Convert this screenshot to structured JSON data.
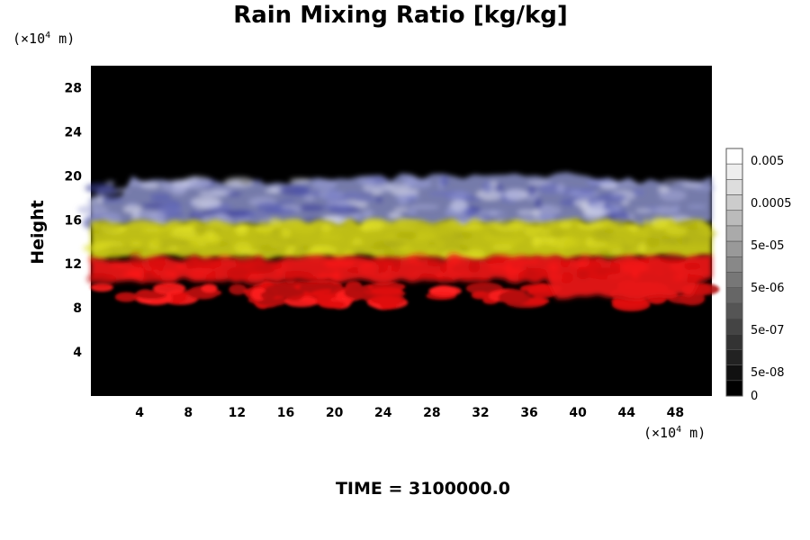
{
  "chart_data": {
    "type": "heatmap",
    "title": "Rain Mixing Ratio [kg/kg]",
    "ylabel": "Height",
    "x_unit": "(×10",
    "x_unit_exp": "4",
    "x_unit_tail": " m)",
    "y_unit": "(×10",
    "y_unit_exp": "4",
    "y_unit_tail": " m)",
    "xlim": [
      0,
      51
    ],
    "ylim": [
      0,
      30
    ],
    "x_ticks": [
      "4",
      "8",
      "12",
      "16",
      "20",
      "24",
      "28",
      "32",
      "36",
      "40",
      "44",
      "48"
    ],
    "y_ticks": [
      "4",
      "8",
      "12",
      "16",
      "20",
      "24",
      "28"
    ],
    "x_tick_values": [
      4,
      8,
      12,
      16,
      20,
      24,
      28,
      32,
      36,
      40,
      44,
      48
    ],
    "y_tick_values": [
      4,
      8,
      12,
      16,
      20,
      24,
      28
    ],
    "bands": [
      {
        "name": "lower red patches",
        "color": "#e01010",
        "y_range": [
          8.3,
          10.0
        ]
      },
      {
        "name": "red layer",
        "color": "#e81414",
        "y_range": [
          10.5,
          12.5
        ]
      },
      {
        "name": "yellow layer",
        "color": "#c8c814",
        "y_range": [
          12.5,
          15.8
        ]
      },
      {
        "name": "blue-white layer",
        "color": "#8a90c8",
        "y_range": [
          15.5,
          19.6
        ]
      }
    ],
    "colorbar": {
      "labels": [
        "0.005",
        "0.0005",
        "5e-05",
        "5e-06",
        "5e-07",
        "5e-08",
        "0"
      ],
      "levels": 16
    },
    "background": "#000000"
  },
  "time_label": "TIME = 3100000.0"
}
